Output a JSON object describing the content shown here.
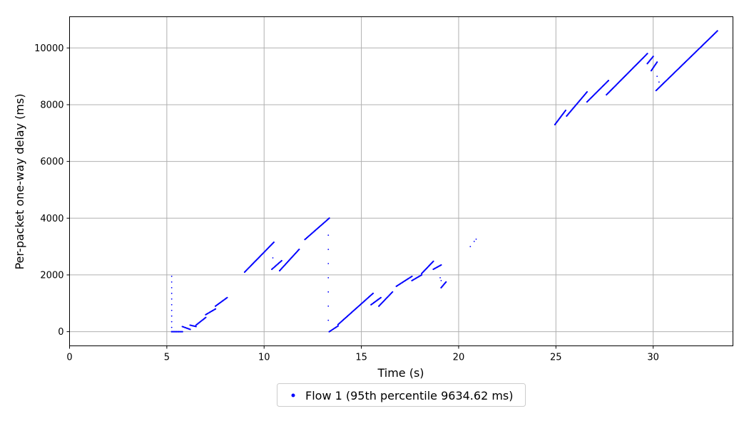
{
  "chart_data": {
    "type": "scatter",
    "title": "",
    "xlabel": "Time (s)",
    "ylabel": "Per-packet one-way delay (ms)",
    "xlim": [
      0,
      34.1
    ],
    "ylim": [
      -500,
      11100
    ],
    "xticks": [
      0,
      5,
      10,
      15,
      20,
      25,
      30
    ],
    "yticks": [
      0,
      2000,
      4000,
      6000,
      8000,
      10000
    ],
    "grid": true,
    "legend_position": "bottom-center",
    "series": [
      {
        "name": "Flow 1 (95th percentile 9634.62 ms)",
        "color": "#0000ff",
        "segments": [
          [
            [
              5.25,
              0
            ],
            [
              5.8,
              0
            ]
          ],
          [
            [
              5.8,
              180
            ],
            [
              6.2,
              80
            ]
          ],
          [
            [
              6.2,
              230
            ],
            [
              6.5,
              180
            ]
          ],
          [
            [
              6.5,
              230
            ],
            [
              7.0,
              500
            ]
          ],
          [
            [
              7.0,
              600
            ],
            [
              7.5,
              800
            ]
          ],
          [
            [
              7.5,
              900
            ],
            [
              8.1,
              1200
            ]
          ],
          [
            [
              9.0,
              2100
            ],
            [
              10.5,
              3150
            ]
          ],
          [
            [
              10.4,
              2200
            ],
            [
              10.9,
              2500
            ]
          ],
          [
            [
              10.8,
              2150
            ],
            [
              11.8,
              2900
            ]
          ],
          [
            [
              12.1,
              3250
            ],
            [
              13.35,
              4000
            ]
          ],
          [
            [
              13.35,
              0
            ],
            [
              13.8,
              200
            ]
          ],
          [
            [
              13.8,
              250
            ],
            [
              15.6,
              1350
            ]
          ],
          [
            [
              15.5,
              950
            ],
            [
              16.0,
              1200
            ]
          ],
          [
            [
              15.9,
              900
            ],
            [
              16.6,
              1400
            ]
          ],
          [
            [
              16.8,
              1600
            ],
            [
              17.6,
              1950
            ]
          ],
          [
            [
              17.6,
              1800
            ],
            [
              18.1,
              2000
            ]
          ],
          [
            [
              18.1,
              2050
            ],
            [
              18.7,
              2480
            ]
          ],
          [
            [
              18.7,
              2200
            ],
            [
              19.1,
              2350
            ]
          ],
          [
            [
              19.1,
              1550
            ],
            [
              19.35,
              1750
            ]
          ],
          [
            [
              24.95,
              7300
            ],
            [
              25.5,
              7800
            ]
          ],
          [
            [
              25.55,
              7600
            ],
            [
              26.6,
              8450
            ]
          ],
          [
            [
              26.6,
              8100
            ],
            [
              27.7,
              8850
            ]
          ],
          [
            [
              27.6,
              8350
            ],
            [
              29.7,
              9800
            ]
          ],
          [
            [
              29.7,
              9450
            ],
            [
              30.0,
              9700
            ]
          ],
          [
            [
              29.9,
              9200
            ],
            [
              30.2,
              9500
            ]
          ],
          [
            [
              30.15,
              8500
            ],
            [
              33.3,
              10600
            ]
          ]
        ],
        "points": [
          [
            5.25,
            1950
          ],
          [
            5.25,
            1750
          ],
          [
            5.25,
            1550
          ],
          [
            5.25,
            1350
          ],
          [
            5.25,
            1150
          ],
          [
            5.25,
            950
          ],
          [
            5.25,
            750
          ],
          [
            5.25,
            550
          ],
          [
            5.25,
            350
          ],
          [
            5.25,
            150
          ],
          [
            13.3,
            3400
          ],
          [
            13.3,
            2900
          ],
          [
            13.3,
            2400
          ],
          [
            13.3,
            1900
          ],
          [
            13.3,
            1400
          ],
          [
            13.3,
            900
          ],
          [
            13.3,
            400
          ],
          [
            10.45,
            2600
          ],
          [
            19.05,
            1900
          ],
          [
            19.1,
            1800
          ],
          [
            20.6,
            3000
          ],
          [
            20.8,
            3180
          ],
          [
            20.9,
            3260
          ],
          [
            30.2,
            9000
          ],
          [
            30.3,
            8800
          ]
        ]
      }
    ]
  }
}
